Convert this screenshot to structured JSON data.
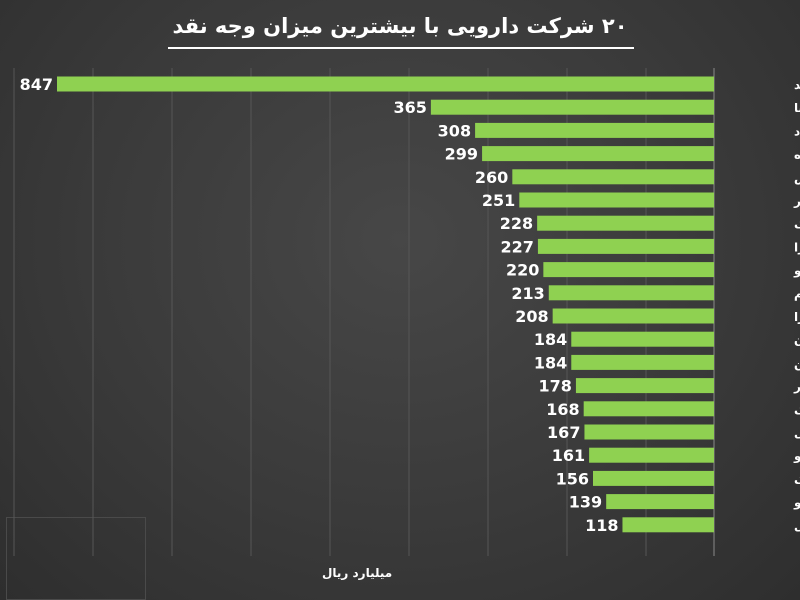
{
  "chart_data": {
    "type": "bar",
    "orientation": "horizontal",
    "title": "۲۰ شرکت دارویی با بیشترین میزان وجه نقد",
    "xlabel": "میلیارد ریال",
    "ylabel": "",
    "xlim": [
      0,
      847
    ],
    "grid": true,
    "categories": [
      "دعبید",
      "دسینا",
      "دتماد",
      "داسوه",
      "پخش",
      "دالبر",
      "دارزک",
      "دفرا",
      "تیپیکو",
      "ددام",
      "دفارا",
      "شتهران",
      "دامین",
      "دکوثر",
      "دیالک",
      "دقاضی",
      "دارو",
      "ریشمک",
      "دسانکو",
      "کی بی سی"
    ],
    "values": [
      847,
      365,
      308,
      299,
      260,
      251,
      228,
      227,
      220,
      213,
      208,
      184,
      184,
      178,
      168,
      167,
      161,
      156,
      139,
      118
    ],
    "bar_color": "#8fd151",
    "text_color": "#ffffff"
  }
}
